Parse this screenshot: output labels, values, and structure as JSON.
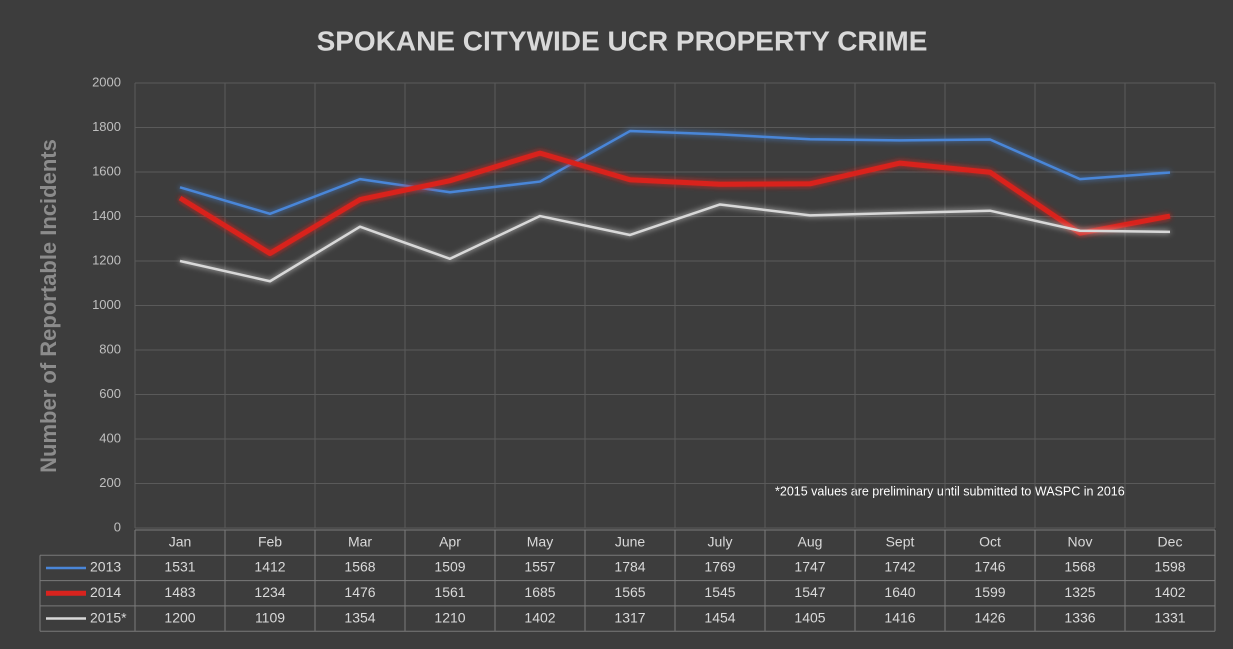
{
  "chart_data": {
    "type": "line",
    "title": "SPOKANE CITYWIDE UCR PROPERTY CRIME",
    "y_label": "Number of Reportable Incidents",
    "annotation": "*2015 values are preliminary until submitted to WASPC in 2016",
    "categories": [
      "Jan",
      "Feb",
      "Mar",
      "Apr",
      "May",
      "June",
      "July",
      "Aug",
      "Sept",
      "Oct",
      "Nov",
      "Dec"
    ],
    "series": [
      {
        "name": "2013",
        "color": "#4a86d8",
        "values": [
          1531,
          1412,
          1568,
          1509,
          1557,
          1784,
          1769,
          1747,
          1742,
          1746,
          1568,
          1598
        ]
      },
      {
        "name": "2014",
        "color": "#d9231e",
        "values": [
          1483,
          1234,
          1476,
          1561,
          1685,
          1565,
          1545,
          1547,
          1640,
          1599,
          1325,
          1402
        ]
      },
      {
        "name": "2015*",
        "color": "#d8d8d8",
        "values": [
          1200,
          1109,
          1354,
          1210,
          1402,
          1317,
          1454,
          1405,
          1416,
          1426,
          1336,
          1331
        ]
      }
    ],
    "ylim": [
      0,
      2000
    ],
    "yticks": [
      0,
      200,
      400,
      600,
      800,
      1000,
      1200,
      1400,
      1600,
      1800,
      2000
    ],
    "grid": true,
    "data_table": true
  }
}
